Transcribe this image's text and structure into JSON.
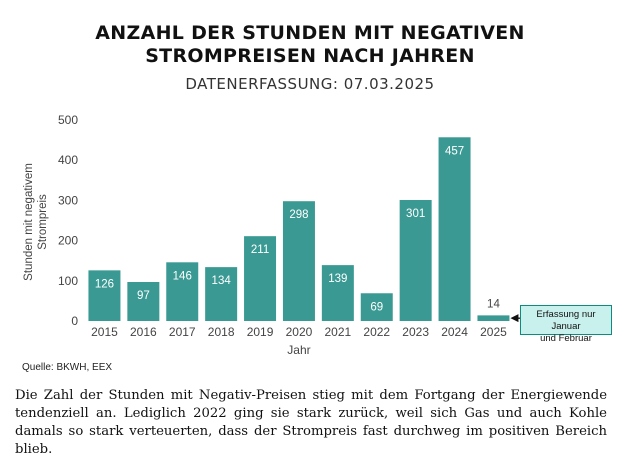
{
  "title_line1": "ANZAHL DER STUNDEN MIT NEGATIVEN",
  "title_line2": "STROMPREISEN NACH JAHREN",
  "subtitle": "DATENERFASSUNG: 07.03.2025",
  "source": "Quelle: BKWH, EEX",
  "annotation": {
    "line1": "Erfassung nur Januar",
    "line2": "und Februar",
    "target_category": "2025"
  },
  "caption": "Die Zahl der Stunden mit Negativ-Preisen stieg mit dem Fortgang der Energiewende tendenziell an. Lediglich 2022 ging sie stark zurück, weil sich Gas und auch Kohle damals so stark verteuerten, dass der Strompreis fast durchweg im positiven Bereich blieb.",
  "colors": {
    "bar": "#3a9a93",
    "axis_text": "#444444",
    "label_inside": "#ffffff",
    "label_outside": "#444444"
  },
  "chart_data": {
    "type": "bar",
    "categories": [
      "2015",
      "2016",
      "2017",
      "2018",
      "2019",
      "2020",
      "2021",
      "2022",
      "2023",
      "2024",
      "2025"
    ],
    "values": [
      126,
      97,
      146,
      134,
      211,
      298,
      139,
      69,
      301,
      457,
      14
    ],
    "xlabel": "Jahr",
    "ylabel_line1": "Stunden mit negativem",
    "ylabel_line2": "Strompreis",
    "ylim": [
      0,
      500
    ],
    "yticks": [
      0,
      100,
      200,
      300,
      400,
      500
    ],
    "grid": false,
    "legend": "none"
  }
}
